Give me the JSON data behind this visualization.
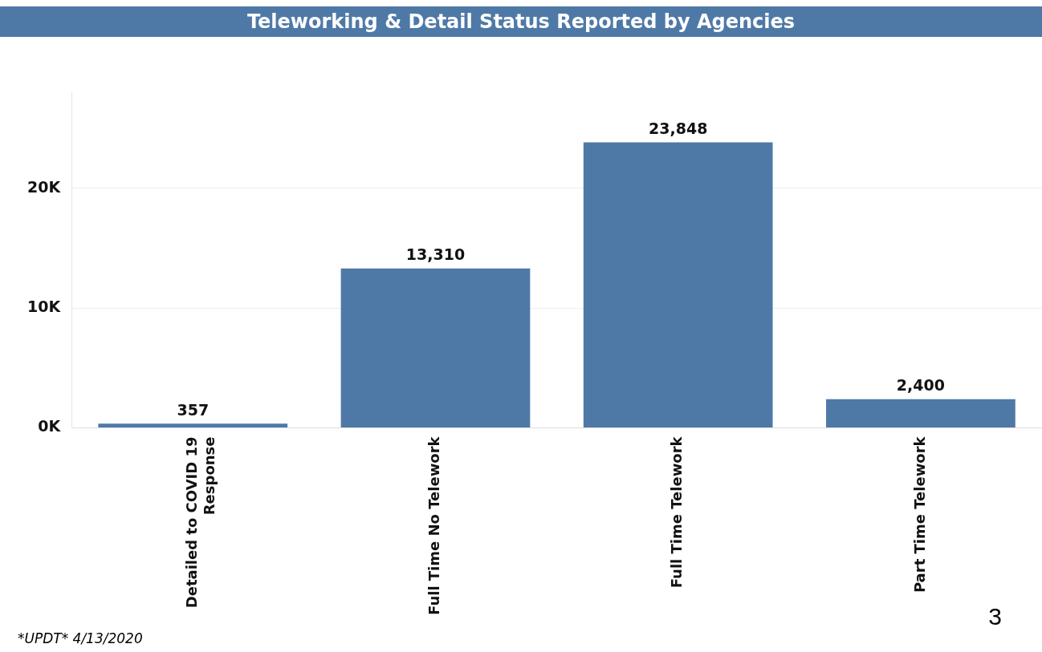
{
  "chart_data": {
    "type": "bar",
    "title": "Teleworking & Detail Status Reported by Agencies",
    "categories": [
      "Detailed to COVID 19 Response",
      "Full Time No Telework",
      "Full Time Telework",
      "Part Time Telework"
    ],
    "values": [
      357,
      13310,
      23848,
      2400
    ],
    "color": "#4e79a7",
    "value_labels": [
      "357",
      "13,310",
      "23,848",
      "2,400"
    ],
    "ylim": [
      0,
      28000
    ],
    "yticks": [
      {
        "value": 0,
        "label": "0K"
      },
      {
        "value": 10000,
        "label": "10K"
      },
      {
        "value": 20000,
        "label": "20K"
      }
    ],
    "grid": "y",
    "legend": false,
    "annotations": [
      "3",
      "*UPDT* 4/13/2020"
    ]
  }
}
